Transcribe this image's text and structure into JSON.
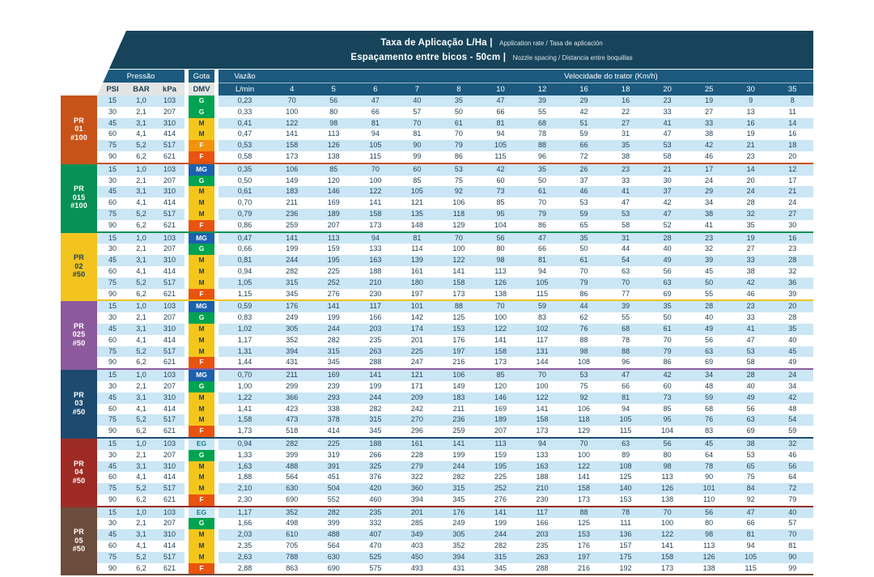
{
  "title": {
    "line1_bold": "Taxa de Aplicação L/Ha |",
    "line1_small": "Application rate / Tasa de aplicación",
    "line2_bold": "Espaçamento entre bicos - 50cm |",
    "line2_small": "Nozzle spacing / Distancia entre boquillas"
  },
  "headers": {
    "pressure": "Pressão",
    "drop": "Gota",
    "flow": "Vazão",
    "speed": "Velocidade do trator (Km/h)",
    "psi": "PSI",
    "bar": "BAR",
    "kpa": "kPa",
    "dmv": "DMV",
    "lmin": "L/min",
    "speeds": [
      "4",
      "5",
      "6",
      "7",
      "8",
      "10",
      "12",
      "16",
      "18",
      "20",
      "25",
      "30",
      "35"
    ]
  },
  "colors": {
    "title_bg": "#17445A",
    "header_blue": "#1B5A7E",
    "subheader_bg": "#E4E4E4",
    "row_alt": "#CBE6F5",
    "text": "#1D4055"
  },
  "dmv_styles": {
    "G": {
      "bg": "#00A350",
      "fg": "#FFFFFF"
    },
    "MG": {
      "bg": "#1B61AE",
      "fg": "#FFFFFF"
    },
    "M": {
      "bg": "#F4C61B",
      "fg": "#1D4055"
    },
    "F": {
      "bg": "#F2930B",
      "fg": "#FFFFFF"
    },
    "F90": {
      "bg": "#E9530E",
      "fg": "#FFFFFF"
    },
    "EG": {
      "bg": "",
      "fg": "#127F8C"
    }
  },
  "groups": [
    {
      "label": [
        "PR",
        "01",
        "#100"
      ],
      "color": "#C85318",
      "text": "#FFFFFF",
      "rows": [
        {
          "psi": "15",
          "bar": "1,0",
          "kpa": "103",
          "dmv": "G",
          "lmin": "0,23",
          "values": [
            70,
            56,
            47,
            40,
            35,
            47,
            39,
            29,
            16,
            23,
            19,
            9,
            8
          ]
        },
        {
          "psi": "30",
          "bar": "2,1",
          "kpa": "207",
          "dmv": "G",
          "lmin": "0,33",
          "values": [
            100,
            80,
            66,
            57,
            50,
            66,
            55,
            42,
            22,
            33,
            27,
            13,
            11
          ]
        },
        {
          "psi": "45",
          "bar": "3,1",
          "kpa": "310",
          "dmv": "M",
          "lmin": "0,41",
          "values": [
            122,
            98,
            81,
            70,
            61,
            81,
            68,
            51,
            27,
            41,
            33,
            16,
            14
          ]
        },
        {
          "psi": "60",
          "bar": "4,1",
          "kpa": "414",
          "dmv": "M",
          "lmin": "0,47",
          "values": [
            141,
            113,
            94,
            81,
            70,
            94,
            78,
            59,
            31,
            47,
            38,
            19,
            16
          ]
        },
        {
          "psi": "75",
          "bar": "5,2",
          "kpa": "517",
          "dmv": "F",
          "lmin": "0,53",
          "values": [
            158,
            126,
            105,
            90,
            79,
            105,
            88,
            66,
            35,
            53,
            42,
            21,
            18
          ]
        },
        {
          "psi": "90",
          "bar": "6,2",
          "kpa": "621",
          "dmv": "F",
          "lmin": "0,58",
          "values": [
            173,
            138,
            115,
            99,
            86,
            115,
            96,
            72,
            38,
            58,
            46,
            23,
            20
          ]
        }
      ]
    },
    {
      "label": [
        "PR",
        "015",
        "#100"
      ],
      "color": "#079157",
      "text": "#FFFFFF",
      "rows": [
        {
          "psi": "15",
          "bar": "1,0",
          "kpa": "103",
          "dmv": "MG",
          "lmin": "0,35",
          "values": [
            106,
            85,
            70,
            60,
            53,
            42,
            35,
            26,
            23,
            21,
            17,
            14,
            12
          ]
        },
        {
          "psi": "30",
          "bar": "2,1",
          "kpa": "207",
          "dmv": "G",
          "lmin": "0,50",
          "values": [
            149,
            120,
            100,
            85,
            75,
            60,
            50,
            37,
            33,
            30,
            24,
            20,
            17
          ]
        },
        {
          "psi": "45",
          "bar": "3,1",
          "kpa": "310",
          "dmv": "M",
          "lmin": "0,61",
          "values": [
            183,
            146,
            122,
            105,
            92,
            73,
            61,
            46,
            41,
            37,
            29,
            24,
            21
          ]
        },
        {
          "psi": "60",
          "bar": "4,1",
          "kpa": "414",
          "dmv": "M",
          "lmin": "0,70",
          "values": [
            211,
            169,
            141,
            121,
            106,
            85,
            70,
            53,
            47,
            42,
            34,
            28,
            24
          ]
        },
        {
          "psi": "75",
          "bar": "5,2",
          "kpa": "517",
          "dmv": "M",
          "lmin": "0,79",
          "values": [
            236,
            189,
            158,
            135,
            118,
            95,
            79,
            59,
            53,
            47,
            38,
            32,
            27
          ]
        },
        {
          "psi": "90",
          "bar": "6,2",
          "kpa": "621",
          "dmv": "F",
          "lmin": "0,86",
          "values": [
            259,
            207,
            173,
            148,
            129,
            104,
            86,
            65,
            58,
            52,
            41,
            35,
            30
          ]
        }
      ]
    },
    {
      "label": [
        "PR",
        "02",
        "#50"
      ],
      "color": "#F2C41D",
      "text": "#1D4055",
      "rows": [
        {
          "psi": "15",
          "bar": "1,0",
          "kpa": "103",
          "dmv": "MG",
          "lmin": "0,47",
          "values": [
            141,
            113,
            94,
            81,
            70,
            56,
            47,
            35,
            31,
            28,
            23,
            19,
            16
          ]
        },
        {
          "psi": "30",
          "bar": "2,1",
          "kpa": "207",
          "dmv": "G",
          "lmin": "0,66",
          "values": [
            199,
            159,
            133,
            114,
            100,
            80,
            66,
            50,
            44,
            40,
            32,
            27,
            23
          ]
        },
        {
          "psi": "45",
          "bar": "3,1",
          "kpa": "310",
          "dmv": "M",
          "lmin": "0,81",
          "values": [
            244,
            195,
            163,
            139,
            122,
            98,
            81,
            61,
            54,
            49,
            39,
            33,
            28
          ]
        },
        {
          "psi": "60",
          "bar": "4,1",
          "kpa": "414",
          "dmv": "M",
          "lmin": "0,94",
          "values": [
            282,
            225,
            188,
            161,
            141,
            113,
            94,
            70,
            63,
            56,
            45,
            38,
            32
          ]
        },
        {
          "psi": "75",
          "bar": "5,2",
          "kpa": "517",
          "dmv": "M",
          "lmin": "1,05",
          "values": [
            315,
            252,
            210,
            180,
            158,
            126,
            105,
            79,
            70,
            63,
            50,
            42,
            36
          ]
        },
        {
          "psi": "90",
          "bar": "6,2",
          "kpa": "621",
          "dmv": "F",
          "lmin": "1,15",
          "values": [
            345,
            276,
            230,
            197,
            173,
            138,
            115,
            86,
            77,
            69,
            55,
            46,
            39
          ]
        }
      ]
    },
    {
      "label": [
        "PR",
        "025",
        "#50"
      ],
      "color": "#8C5A9C",
      "text": "#FFFFFF",
      "rows": [
        {
          "psi": "15",
          "bar": "1,0",
          "kpa": "103",
          "dmv": "MG",
          "lmin": "0,59",
          "values": [
            176,
            141,
            117,
            101,
            88,
            70,
            59,
            44,
            39,
            35,
            28,
            23,
            20
          ]
        },
        {
          "psi": "30",
          "bar": "2,1",
          "kpa": "207",
          "dmv": "G",
          "lmin": "0,83",
          "values": [
            249,
            199,
            166,
            142,
            125,
            100,
            83,
            62,
            55,
            50,
            40,
            33,
            28
          ]
        },
        {
          "psi": "45",
          "bar": "3,1",
          "kpa": "310",
          "dmv": "M",
          "lmin": "1,02",
          "values": [
            305,
            244,
            203,
            174,
            153,
            122,
            102,
            76,
            68,
            61,
            49,
            41,
            35
          ]
        },
        {
          "psi": "60",
          "bar": "4,1",
          "kpa": "414",
          "dmv": "M",
          "lmin": "1,17",
          "values": [
            352,
            282,
            235,
            201,
            176,
            141,
            117,
            88,
            78,
            70,
            56,
            47,
            40
          ]
        },
        {
          "psi": "75",
          "bar": "5,2",
          "kpa": "517",
          "dmv": "M",
          "lmin": "1,31",
          "values": [
            394,
            315,
            263,
            225,
            197,
            158,
            131,
            98,
            88,
            79,
            63,
            53,
            45
          ]
        },
        {
          "psi": "90",
          "bar": "6,2",
          "kpa": "621",
          "dmv": "F",
          "lmin": "1,44",
          "values": [
            431,
            345,
            288,
            247,
            216,
            173,
            144,
            108,
            96,
            86,
            69,
            58,
            49
          ]
        }
      ]
    },
    {
      "label": [
        "PR",
        "03",
        "#50"
      ],
      "color": "#1D4B70",
      "text": "#FFFFFF",
      "rows": [
        {
          "psi": "15",
          "bar": "1,0",
          "kpa": "103",
          "dmv": "MG",
          "lmin": "0,70",
          "values": [
            211,
            169,
            141,
            121,
            106,
            85,
            70,
            53,
            47,
            42,
            34,
            28,
            24
          ]
        },
        {
          "psi": "30",
          "bar": "2,1",
          "kpa": "207",
          "dmv": "G",
          "lmin": "1,00",
          "values": [
            299,
            239,
            199,
            171,
            149,
            120,
            100,
            75,
            66,
            60,
            48,
            40,
            34
          ]
        },
        {
          "psi": "45",
          "bar": "3,1",
          "kpa": "310",
          "dmv": "M",
          "lmin": "1,22",
          "values": [
            366,
            293,
            244,
            209,
            183,
            146,
            122,
            92,
            81,
            73,
            59,
            49,
            42
          ]
        },
        {
          "psi": "60",
          "bar": "4,1",
          "kpa": "414",
          "dmv": "M",
          "lmin": "1,41",
          "values": [
            423,
            338,
            282,
            242,
            211,
            169,
            141,
            106,
            94,
            85,
            68,
            56,
            48
          ]
        },
        {
          "psi": "75",
          "bar": "5,2",
          "kpa": "517",
          "dmv": "M",
          "lmin": "1,58",
          "values": [
            473,
            378,
            315,
            270,
            236,
            189,
            158,
            118,
            105,
            95,
            76,
            63,
            54
          ]
        },
        {
          "psi": "90",
          "bar": "6,2",
          "kpa": "621",
          "dmv": "F",
          "lmin": "1,73",
          "values": [
            518,
            414,
            345,
            296,
            259,
            207,
            173,
            129,
            115,
            104,
            83,
            69,
            59
          ]
        }
      ]
    },
    {
      "label": [
        "PR",
        "04",
        "#50"
      ],
      "color": "#9D2B24",
      "text": "#FFFFFF",
      "rows": [
        {
          "psi": "15",
          "bar": "1,0",
          "kpa": "103",
          "dmv": "EG",
          "lmin": "0,94",
          "values": [
            282,
            225,
            188,
            161,
            141,
            113,
            94,
            70,
            63,
            56,
            45,
            38,
            32
          ]
        },
        {
          "psi": "30",
          "bar": "2,1",
          "kpa": "207",
          "dmv": "G",
          "lmin": "1,33",
          "values": [
            399,
            319,
            266,
            228,
            199,
            159,
            133,
            100,
            89,
            80,
            64,
            53,
            46
          ]
        },
        {
          "psi": "45",
          "bar": "3,1",
          "kpa": "310",
          "dmv": "M",
          "lmin": "1,63",
          "values": [
            488,
            391,
            325,
            279,
            244,
            195,
            163,
            122,
            108,
            98,
            78,
            65,
            56
          ]
        },
        {
          "psi": "60",
          "bar": "4,1",
          "kpa": "414",
          "dmv": "M",
          "lmin": "1,88",
          "values": [
            564,
            451,
            376,
            322,
            282,
            225,
            188,
            141,
            125,
            113,
            90,
            75,
            64
          ]
        },
        {
          "psi": "75",
          "bar": "5,2",
          "kpa": "517",
          "dmv": "M",
          "lmin": "2,10",
          "values": [
            630,
            504,
            420,
            360,
            315,
            252,
            210,
            158,
            140,
            126,
            101,
            84,
            72
          ]
        },
        {
          "psi": "90",
          "bar": "6,2",
          "kpa": "621",
          "dmv": "F",
          "lmin": "2,30",
          "values": [
            690,
            552,
            460,
            394,
            345,
            276,
            230,
            173,
            153,
            138,
            110,
            92,
            79
          ]
        }
      ]
    },
    {
      "label": [
        "PR",
        "05",
        "#50"
      ],
      "color": "#6C4C3D",
      "text": "#FFFFFF",
      "rows": [
        {
          "psi": "15",
          "bar": "1,0",
          "kpa": "103",
          "dmv": "EG",
          "lmin": "1,17",
          "values": [
            352,
            282,
            235,
            201,
            176,
            141,
            117,
            88,
            78,
            70,
            56,
            47,
            40
          ]
        },
        {
          "psi": "30",
          "bar": "2,1",
          "kpa": "207",
          "dmv": "G",
          "lmin": "1,66",
          "values": [
            498,
            399,
            332,
            285,
            249,
            199,
            166,
            125,
            111,
            100,
            80,
            66,
            57
          ]
        },
        {
          "psi": "45",
          "bar": "3,1",
          "kpa": "310",
          "dmv": "M",
          "lmin": "2,03",
          "values": [
            610,
            488,
            407,
            349,
            305,
            244,
            203,
            153,
            136,
            122,
            98,
            81,
            70
          ]
        },
        {
          "psi": "60",
          "bar": "4,1",
          "kpa": "414",
          "dmv": "M",
          "lmin": "2,35",
          "values": [
            705,
            564,
            470,
            403,
            352,
            282,
            235,
            176,
            157,
            141,
            113,
            94,
            81
          ]
        },
        {
          "psi": "75",
          "bar": "5,2",
          "kpa": "517",
          "dmv": "M",
          "lmin": "2,63",
          "values": [
            788,
            630,
            525,
            450,
            394,
            315,
            263,
            197,
            175,
            158,
            126,
            105,
            90
          ]
        },
        {
          "psi": "90",
          "bar": "6,2",
          "kpa": "621",
          "dmv": "F",
          "lmin": "2,88",
          "values": [
            863,
            690,
            575,
            493,
            431,
            345,
            288,
            216,
            192,
            173,
            138,
            115,
            99
          ]
        }
      ]
    }
  ]
}
